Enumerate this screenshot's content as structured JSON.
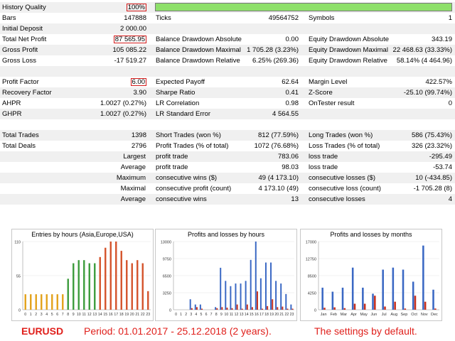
{
  "report": {
    "rows": [
      {
        "shade": "odd",
        "c1": "History Quality",
        "v1": "100%",
        "v1_box": true,
        "bar": true
      },
      {
        "shade": "even",
        "c1": "Bars",
        "v1": "147888",
        "c2": "Ticks",
        "v2": "49564752",
        "c3": "Symbols",
        "v3": "1"
      },
      {
        "shade": "odd",
        "c1": "Initial Deposit",
        "v1": "2 000.00"
      },
      {
        "shade": "even",
        "c1": "Total Net Profit",
        "v1": "87 565.95",
        "v1_box": true,
        "c2": "Balance Drawdown Absolute",
        "v2": "0.00",
        "c3": "Equity Drawdown Absolute",
        "v3": "343.19"
      },
      {
        "shade": "odd",
        "c1": "Gross Profit",
        "v1": "105 085.22",
        "c2": "Balance Drawdown Maximal",
        "v2": "1 705.28 (3.23%)",
        "c3": "Equity Drawdown Maximal",
        "v3": "22 468.63 (33.33%)"
      },
      {
        "shade": "even",
        "c1": "Gross Loss",
        "v1": "-17 519.27",
        "c2": "Balance Drawdown Relative",
        "v2": "6.25% (269.36)",
        "c3": "Equity Drawdown Relative",
        "v3": "58.14% (4 464.96)"
      },
      {
        "shade": "odd"
      },
      {
        "shade": "even",
        "c1": "Profit Factor",
        "v1": "6.00",
        "v1_box": true,
        "c2": "Expected Payoff",
        "v2": "62.64",
        "c3": "Margin Level",
        "v3": "422.57%"
      },
      {
        "shade": "odd",
        "c1": "Recovery Factor",
        "v1": "3.90",
        "c2": "Sharpe Ratio",
        "v2": "0.41",
        "c3": "Z-Score",
        "v3": "-25.10 (99.74%)"
      },
      {
        "shade": "even",
        "c1": "AHPR",
        "v1": "1.0027 (0.27%)",
        "c2": "LR Correlation",
        "v2": "0.98",
        "c3": "OnTester result",
        "v3": "0"
      },
      {
        "shade": "odd",
        "c1": "GHPR",
        "v1": "1.0027 (0.27%)",
        "c2": "LR Standard Error",
        "v2": "4 564.55"
      },
      {
        "shade": "even"
      },
      {
        "shade": "odd",
        "c1": "Total Trades",
        "v1": "1398",
        "c2": "Short Trades (won %)",
        "v2": "812 (77.59%)",
        "c3": "Long Trades (won %)",
        "v3": "586 (75.43%)"
      },
      {
        "shade": "even",
        "c1": "Total Deals",
        "v1": "2796",
        "c2": "Profit Trades (% of total)",
        "v2": "1072 (76.68%)",
        "c3": "Loss Trades (% of total)",
        "v3": "326 (23.32%)"
      },
      {
        "shade": "odd",
        "c1r": "Largest",
        "c2": "profit trade",
        "v2": "783.06",
        "c3": "loss trade",
        "v3": "-295.49"
      },
      {
        "shade": "even",
        "c1r": "Average",
        "c2": "profit trade",
        "v2": "98.03",
        "c3": "loss trade",
        "v3": "-53.74"
      },
      {
        "shade": "odd",
        "c1r": "Maximum",
        "c2": "consecutive wins ($)",
        "v2": "49 (4 173.10)",
        "c3": "consecutive losses ($)",
        "v3": "10 (-434.85)"
      },
      {
        "shade": "even",
        "c1r": "Maximal",
        "c2": "consecutive profit (count)",
        "v2": "4 173.10 (49)",
        "c3": "consecutive loss (count)",
        "v3": "-1 705.28 (8)"
      },
      {
        "shade": "odd",
        "c1r": "Average",
        "c2": "consecutive wins",
        "v2": "13",
        "c3": "consecutive losses",
        "v3": "4"
      },
      {
        "shade": "even"
      }
    ]
  },
  "colors": {
    "asia": "#e3a21a",
    "europe": "#3c9c3c",
    "usa": "#d4532b",
    "profit": "#3a68c4",
    "loss": "#c8321e",
    "bar_quality": "#8ee06a",
    "footer": "#e0201c"
  },
  "chart_data": [
    {
      "type": "bar",
      "title": "Entries by hours (Asia,Europe,USA)",
      "categories": [
        "0",
        "1",
        "2",
        "3",
        "4",
        "5",
        "6",
        "7",
        "8",
        "9",
        "10",
        "11",
        "12",
        "13",
        "14",
        "15",
        "16",
        "17",
        "18",
        "19",
        "20",
        "21",
        "22",
        "23"
      ],
      "values": [
        25,
        25,
        25,
        25,
        25,
        25,
        25,
        25,
        50,
        75,
        80,
        80,
        75,
        75,
        85,
        100,
        110,
        110,
        95,
        80,
        75,
        80,
        75,
        30
      ],
      "ylim": [
        0,
        110
      ],
      "yticks": [
        "110",
        "55",
        "0"
      ]
    },
    {
      "type": "bar",
      "title": "Profits and losses by hours",
      "categories": [
        "0",
        "1",
        "2",
        "3",
        "4",
        "5",
        "6",
        "7",
        "8",
        "9",
        "10",
        "11",
        "12",
        "13",
        "14",
        "15",
        "16",
        "17",
        "18",
        "19",
        "20",
        "21",
        "22",
        "23"
      ],
      "series": [
        {
          "values": [
            0,
            0,
            0,
            2000,
            1000,
            1000,
            0,
            0,
            500,
            8000,
            5500,
            4500,
            5000,
            5000,
            5500,
            9500,
            13000,
            6000,
            9000,
            9000,
            5500,
            5000,
            3000,
            1000
          ]
        },
        {
          "values": [
            0,
            0,
            0,
            300,
            500,
            200,
            0,
            0,
            300,
            500,
            400,
            300,
            1000,
            200,
            1000,
            500,
            3500,
            200,
            700,
            2000,
            500,
            600,
            200,
            200
          ]
        }
      ],
      "ylim": [
        0,
        13000
      ],
      "yticks": [
        "13000",
        "9750",
        "6500",
        "3250",
        "0"
      ]
    },
    {
      "type": "bar",
      "title": "Profits and losses by months",
      "categories": [
        "Jan",
        "Feb",
        "Mar",
        "Apr",
        "May",
        "Jun",
        "Jul",
        "Aug",
        "Sep",
        "Oct",
        "Nov",
        "Dec"
      ],
      "series": [
        {
          "values": [
            5500,
            4500,
            5500,
            10500,
            5500,
            4000,
            10000,
            10500,
            10000,
            7000,
            16000,
            5000
          ]
        },
        {
          "values": [
            500,
            600,
            400,
            1500,
            1500,
            3500,
            800,
            2000,
            300,
            3500,
            2000,
            300
          ]
        }
      ],
      "ylim": [
        0,
        17000
      ],
      "yticks": [
        "17000",
        "12750",
        "8500",
        "4250",
        "0"
      ]
    }
  ],
  "footer": {
    "symbol": "EURUSD",
    "period": "Period: 01.01.2017 - 25.12.2018 (2 years).",
    "settings": "The settings by default."
  }
}
